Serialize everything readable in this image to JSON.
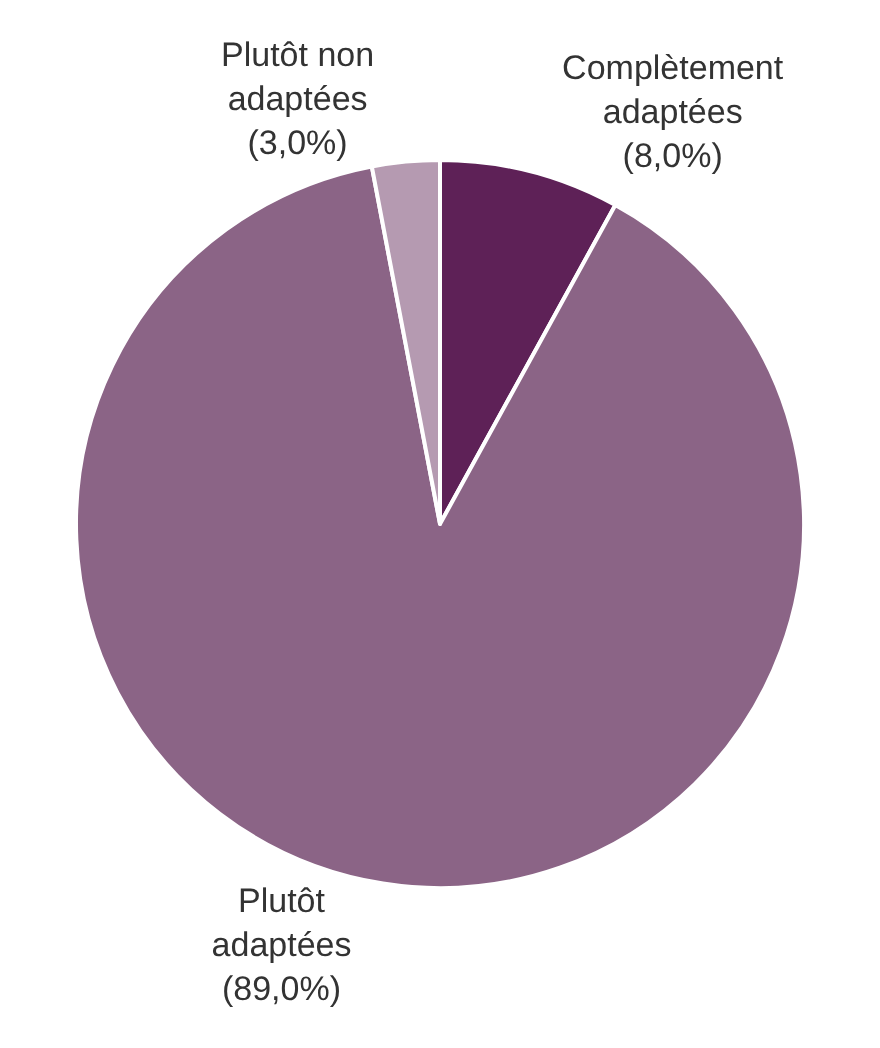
{
  "chart_data": {
    "type": "pie",
    "categories": [
      "Complètement adaptées",
      "Plutôt adaptées",
      "Plutôt non adaptées"
    ],
    "values": [
      8.0,
      89.0,
      3.0
    ],
    "value_labels": [
      "(8,0%)",
      "(89,0%)",
      "(3,0%)"
    ],
    "colors": [
      "#5e2157",
      "#8b6486",
      "#b59ab1"
    ],
    "legend": false
  }
}
